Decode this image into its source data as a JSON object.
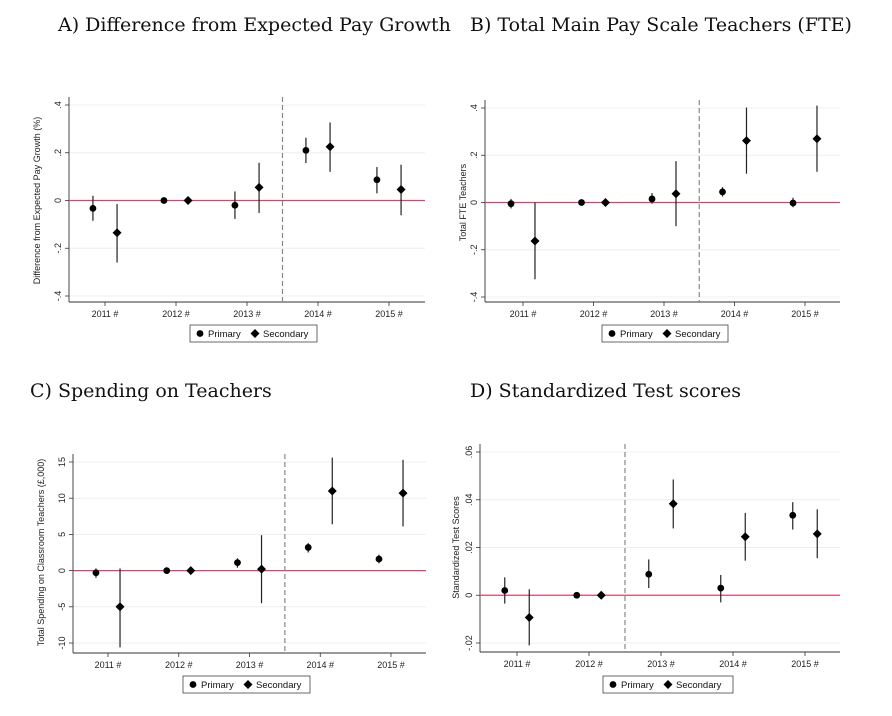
{
  "chart_data": [
    {
      "type": "scatter",
      "title": "A)  Difference from Expected Pay Growth",
      "ylabel": "Difference from Expected Pay Growth (%)",
      "xlabel": "",
      "categories": [
        "2011 #",
        "2012 #",
        "2013 #",
        "2014 #",
        "2015 #"
      ],
      "ylim": [
        -0.4,
        0.4
      ],
      "yticks": [
        {
          "value": -0.4,
          "label": "-.4"
        },
        {
          "value": -0.2,
          "label": "-.2"
        },
        {
          "value": 0,
          "label": "0"
        },
        {
          "value": 0.2,
          "label": ".2"
        },
        {
          "value": 0.4,
          "label": ".4"
        }
      ],
      "reference_line": 0,
      "vline_after": "2013 #",
      "legend": {
        "position": "bottom"
      },
      "series": [
        {
          "name": "Primary",
          "marker": "circle",
          "values": [
            -0.033,
            0,
            -0.02,
            0.21,
            0.087
          ],
          "ci_low": [
            -0.085,
            0,
            -0.077,
            0.157,
            0.03
          ],
          "ci_high": [
            0.02,
            0,
            0.038,
            0.263,
            0.14
          ]
        },
        {
          "name": "Secondary",
          "marker": "diamond",
          "values": [
            -0.135,
            0,
            0.055,
            0.225,
            0.046
          ],
          "ci_low": [
            -0.26,
            0,
            -0.052,
            0.12,
            -0.062
          ],
          "ci_high": [
            -0.015,
            0,
            0.158,
            0.327,
            0.15
          ]
        }
      ]
    },
    {
      "type": "scatter",
      "title": "B) Total Main Pay Scale Teachers (FTE)",
      "ylabel": "Total FTE Teachers",
      "xlabel": "",
      "categories": [
        "2011 #",
        "2012 #",
        "2013 #",
        "2014 #",
        "2015 #"
      ],
      "ylim": [
        -0.4,
        0.4
      ],
      "yticks": [
        {
          "value": -0.4,
          "label": "-.4"
        },
        {
          "value": -0.2,
          "label": "-.2"
        },
        {
          "value": 0,
          "label": "0"
        },
        {
          "value": 0.2,
          "label": ".2"
        },
        {
          "value": 0.4,
          "label": ".4"
        }
      ],
      "reference_line": 0,
      "vline_after": "2013 #",
      "legend": {
        "position": "bottom"
      },
      "series": [
        {
          "name": "Primary",
          "marker": "circle",
          "values": [
            -0.005,
            0,
            0.015,
            0.045,
            -0.002
          ],
          "ci_low": [
            -0.025,
            0,
            -0.005,
            0.025,
            -0.02
          ],
          "ci_high": [
            0.015,
            0,
            0.04,
            0.065,
            0.02
          ]
        },
        {
          "name": "Secondary",
          "marker": "diamond",
          "values": [
            -0.163,
            0,
            0.037,
            0.262,
            0.27
          ],
          "ci_low": [
            -0.325,
            0,
            -0.1,
            0.122,
            0.13
          ],
          "ci_high": [
            0,
            0,
            0.175,
            0.402,
            0.41
          ]
        }
      ]
    },
    {
      "type": "scatter",
      "title": "C) Spending on Teachers",
      "ylabel": "Total Spending on Classroom Teachers (£,000)",
      "xlabel": "",
      "categories": [
        "2011 #",
        "2012 #",
        "2013 #",
        "2014 #",
        "2015 #"
      ],
      "ylim": [
        -11.2,
        16.3
      ],
      "yticks": [
        {
          "value": -10,
          "label": "-10"
        },
        {
          "value": -5,
          "label": "-5"
        },
        {
          "value": 0,
          "label": "0"
        },
        {
          "value": 5,
          "label": "5"
        },
        {
          "value": 10,
          "label": "10"
        },
        {
          "value": 15,
          "label": "15"
        }
      ],
      "reference_line": 0,
      "vline_after": "2013 #",
      "legend": {
        "position": "bottom"
      },
      "series": [
        {
          "name": "Primary",
          "marker": "circle",
          "values": [
            -0.3,
            0,
            1.1,
            3.2,
            1.6
          ],
          "ci_low": [
            -1.0,
            -0.2,
            0.4,
            2.5,
            1.0
          ],
          "ci_high": [
            0.3,
            0.2,
            1.7,
            3.8,
            2.2
          ]
        },
        {
          "name": "Secondary",
          "marker": "diamond",
          "values": [
            -5.0,
            0,
            0.2,
            11.0,
            10.7
          ],
          "ci_low": [
            -10.6,
            -0.3,
            -4.5,
            6.4,
            6.1
          ],
          "ci_high": [
            0.3,
            0.3,
            4.9,
            15.6,
            15.3
          ]
        }
      ]
    },
    {
      "type": "scatter",
      "title": "D) Standardized Test scores",
      "ylabel": "Standardized Test Scores",
      "xlabel": "",
      "categories": [
        "2011 #",
        "2012 #",
        "2013 #",
        "2014 #",
        "2015 #"
      ],
      "ylim": [
        -0.02,
        0.06
      ],
      "yticks": [
        {
          "value": -0.02,
          "label": "-.02"
        },
        {
          "value": 0,
          "label": "0"
        },
        {
          "value": 0.02,
          "label": ".02"
        },
        {
          "value": 0.04,
          "label": ".04"
        },
        {
          "value": 0.06,
          "label": ".06"
        }
      ],
      "reference_line": 0,
      "vline_after": "2012 #",
      "legend": {
        "position": "bottom"
      },
      "series": [
        {
          "name": "Primary",
          "marker": "circle",
          "values": [
            0.002,
            0,
            0.0088,
            0.003,
            0.0335
          ],
          "ci_low": [
            -0.0035,
            0,
            0.003,
            -0.003,
            0.0275
          ],
          "ci_high": [
            0.0075,
            0,
            0.015,
            0.0085,
            0.039
          ]
        },
        {
          "name": "Secondary",
          "marker": "diamond",
          "values": [
            -0.0093,
            0,
            0.0383,
            0.0245,
            0.0257
          ],
          "ci_low": [
            -0.021,
            0,
            0.028,
            0.0145,
            0.0155
          ],
          "ci_high": [
            0.0025,
            0,
            0.0485,
            0.0345,
            0.036
          ]
        }
      ]
    }
  ],
  "colors": {
    "reference_line": "#d9436a",
    "vline": "#888888",
    "marker": "#000000",
    "grid": "#e8f0f0"
  }
}
